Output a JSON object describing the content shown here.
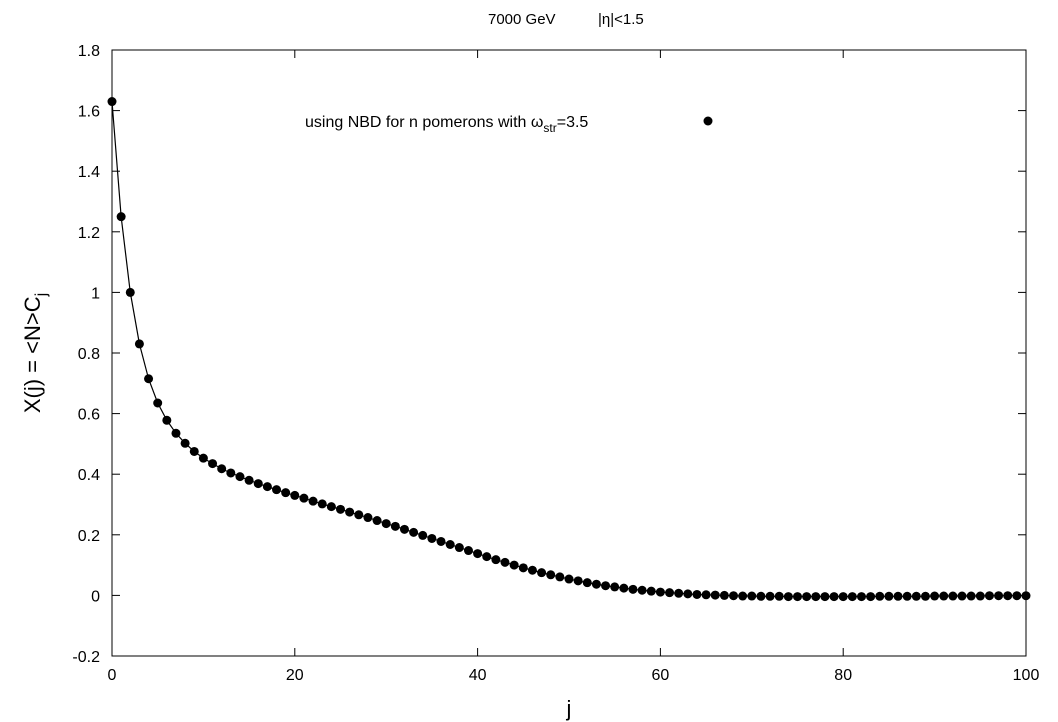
{
  "chart_data": {
    "type": "scatter",
    "title_parts": [
      "7000 GeV",
      "|η|<1.5"
    ],
    "xlabel": "j",
    "ylabel": {
      "main": "X(j) = <N>C",
      "sub": "j"
    },
    "xlim": [
      0,
      100
    ],
    "ylim": [
      -0.2,
      1.8
    ],
    "x_ticks": [
      {
        "value": 0,
        "label": "0"
      },
      {
        "value": 20,
        "label": "20"
      },
      {
        "value": 40,
        "label": "40"
      },
      {
        "value": 60,
        "label": "60"
      },
      {
        "value": 80,
        "label": "80"
      },
      {
        "value": 100,
        "label": "100"
      }
    ],
    "y_ticks": [
      {
        "value": -0.2,
        "label": "-0.2"
      },
      {
        "value": 0,
        "label": "0"
      },
      {
        "value": 0.2,
        "label": "0.2"
      },
      {
        "value": 0.4,
        "label": "0.4"
      },
      {
        "value": 0.6,
        "label": "0.6"
      },
      {
        "value": 0.8,
        "label": "0.8"
      },
      {
        "value": 1,
        "label": "1"
      },
      {
        "value": 1.2,
        "label": "1.2"
      },
      {
        "value": 1.4,
        "label": "1.4"
      },
      {
        "value": 1.6,
        "label": "1.6"
      },
      {
        "value": 1.8,
        "label": "1.8"
      }
    ],
    "grid": false,
    "legend_position": "top-center",
    "series": [
      {
        "name_parts": {
          "prefix": "using NBD for n pomerons with ω",
          "sub": "str",
          "suffix": "=3.5"
        },
        "marker": "filled-circle",
        "line": true,
        "color": "#000000",
        "x": [
          0,
          1,
          2,
          3,
          4,
          5,
          6,
          7,
          8,
          9,
          10,
          11,
          12,
          13,
          14,
          15,
          16,
          17,
          18,
          19,
          20,
          21,
          22,
          23,
          24,
          25,
          26,
          27,
          28,
          29,
          30,
          31,
          32,
          33,
          34,
          35,
          36,
          37,
          38,
          39,
          40,
          41,
          42,
          43,
          44,
          45,
          46,
          47,
          48,
          49,
          50,
          51,
          52,
          53,
          54,
          55,
          56,
          57,
          58,
          59,
          60,
          61,
          62,
          63,
          64,
          65,
          66,
          67,
          68,
          69,
          70,
          71,
          72,
          73,
          74,
          75,
          76,
          77,
          78,
          79,
          80,
          81,
          82,
          83,
          84,
          85,
          86,
          87,
          88,
          89,
          90,
          91,
          92,
          93,
          94,
          95,
          96,
          97,
          98,
          99,
          100
        ],
        "y": [
          1.63,
          1.25,
          1.0,
          0.83,
          0.715,
          0.635,
          0.578,
          0.535,
          0.502,
          0.475,
          0.453,
          0.435,
          0.418,
          0.404,
          0.392,
          0.38,
          0.369,
          0.359,
          0.349,
          0.339,
          0.33,
          0.321,
          0.311,
          0.302,
          0.293,
          0.284,
          0.275,
          0.266,
          0.257,
          0.247,
          0.237,
          0.228,
          0.218,
          0.208,
          0.198,
          0.188,
          0.178,
          0.168,
          0.158,
          0.148,
          0.138,
          0.128,
          0.118,
          0.109,
          0.1,
          0.091,
          0.083,
          0.075,
          0.068,
          0.061,
          0.054,
          0.048,
          0.042,
          0.037,
          0.032,
          0.028,
          0.024,
          0.02,
          0.017,
          0.014,
          0.011,
          0.009,
          0.007,
          0.005,
          0.003,
          0.002,
          0.001,
          0.0,
          -0.001,
          -0.002,
          -0.002,
          -0.003,
          -0.003,
          -0.003,
          -0.004,
          -0.004,
          -0.004,
          -0.004,
          -0.004,
          -0.004,
          -0.004,
          -0.004,
          -0.004,
          -0.004,
          -0.003,
          -0.003,
          -0.003,
          -0.003,
          -0.003,
          -0.003,
          -0.002,
          -0.002,
          -0.002,
          -0.002,
          -0.002,
          -0.002,
          -0.001,
          -0.001,
          -0.001,
          -0.001,
          -0.001
        ]
      }
    ]
  }
}
